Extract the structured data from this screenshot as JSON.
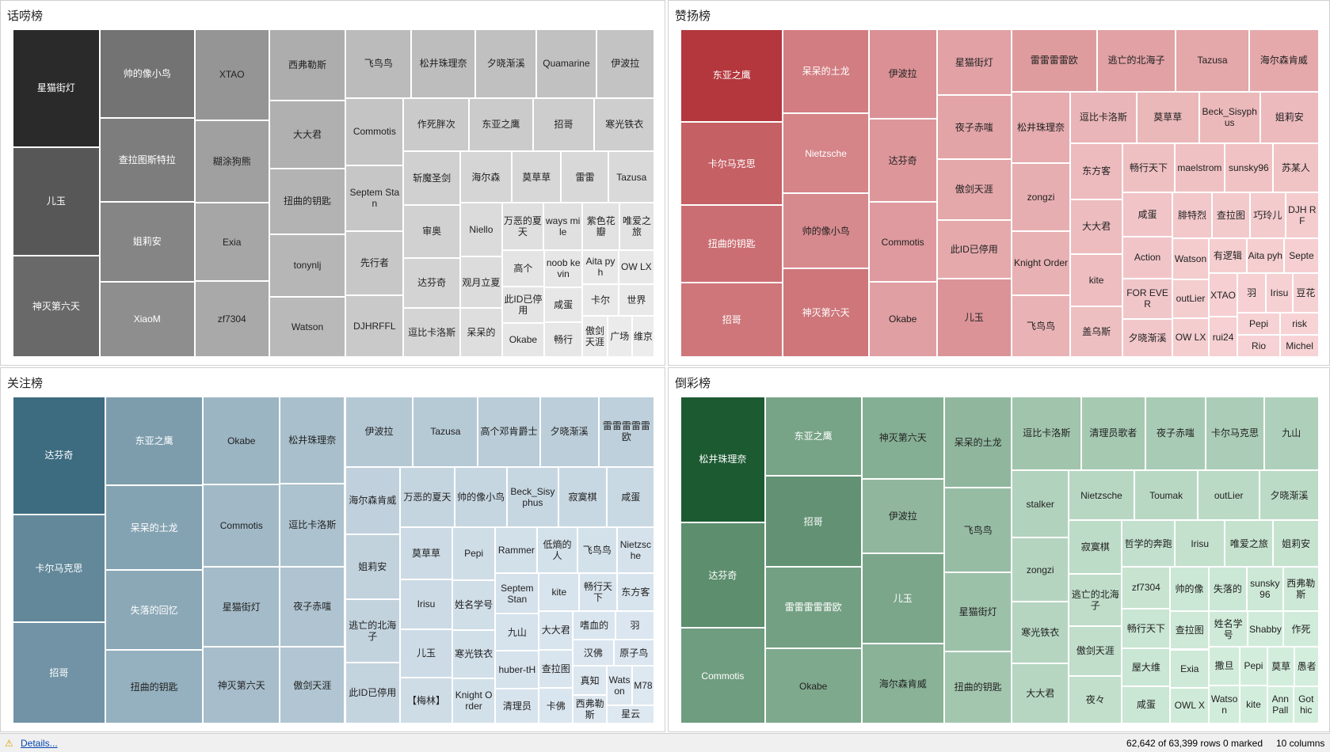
{
  "chart_data": [
    {
      "type": "treemap",
      "title": "话唠榜",
      "color": "#2a2a2a",
      "light_color": "#ececec",
      "categories": [
        "星猫街灯",
        "儿玉",
        "神灭第六天",
        "帅的像小鸟",
        "查拉图斯特拉",
        "姐莉安",
        "XiaoM",
        "XTAO",
        "糊涂狗熊",
        "Exia",
        "zf7304",
        "西弗勒斯",
        "大大君",
        "扭曲的钥匙",
        "tonynlj",
        "Watson",
        "飞鸟鸟",
        "松井珠理奈",
        "夕晓渐溪",
        "Quamarine",
        "伊波拉",
        "Commotis",
        "Septem Stan",
        "先行者",
        "DJHRFFL",
        "作死胖次",
        "东亚之鹰",
        "招哥",
        "寒光铁衣",
        "斩魔圣剑",
        "审奥",
        "达芬奇",
        "逗比卡洛斯",
        "海尔森",
        "莫草草",
        "雷雷",
        "Tazusa",
        "Niello",
        "观月立夏",
        "呆呆的",
        "万恶的夏天",
        "ways mile",
        "紫色花瓣",
        "唯爱之旅",
        "高个",
        "此ID已停用",
        "Okabe",
        "noob kevin",
        "咸蛋",
        "畅行",
        "Aita pyh",
        "OW LX",
        "卡尔",
        "世界",
        "傲剑天涯",
        "广场",
        "维京"
      ],
      "values": [
        100,
        92,
        86,
        82,
        78,
        74,
        70,
        66,
        60,
        57,
        55,
        53,
        51,
        49,
        47,
        45,
        44,
        43,
        41,
        40,
        39,
        38,
        37,
        36,
        35,
        34,
        33,
        32,
        31,
        30,
        29,
        28,
        27,
        26,
        25,
        24,
        23,
        22,
        21,
        20,
        19,
        18,
        17,
        16,
        15,
        15,
        14,
        14,
        13,
        13,
        12,
        12,
        11,
        11,
        10,
        10,
        9
      ]
    },
    {
      "type": "treemap",
      "title": "赞扬榜",
      "color": "#b3373d",
      "light_color": "#f7d3d5",
      "categories": [
        "东亚之鹰",
        "卡尔马克思",
        "扭曲的钥匙",
        "招哥",
        "呆呆的土龙",
        "Nietzsche",
        "帅的像小鸟",
        "神灭第六天",
        "伊波拉",
        "达芬奇",
        "Commotis",
        "Okabe",
        "星猫街灯",
        "夜子赤嗤",
        "傲剑天涯",
        "此ID已停用",
        "儿玉",
        "雷雷雷雷欧",
        "逃亡的北海子",
        "Tazusa",
        "海尔森肯威",
        "松井珠理奈",
        "zongzi",
        "Knight Order",
        "飞鸟鸟",
        "逗比卡洛斯",
        "莫草草",
        "Beck_Sisyphus",
        "姐莉安",
        "东方客",
        "大大君",
        "kite",
        "盖乌斯",
        "畅行天下",
        "maelstrom",
        "sunsky96",
        "苏某人",
        "咸蛋",
        "Action",
        "FOR EVER",
        "夕晓渐溪",
        "腓特烈",
        "查拉图",
        "巧玲儿",
        "DJH RF",
        "Watson",
        "outLier",
        "OW LX",
        "有逻辑",
        "Aita pyh",
        "Septe",
        "XTAO",
        "rui24",
        "羽",
        "Irisu",
        "豆花",
        "Pepi",
        "Rio",
        "risk",
        "Michel"
      ],
      "values": [
        100,
        90,
        84,
        80,
        76,
        72,
        68,
        80,
        64,
        60,
        57,
        54,
        52,
        50,
        48,
        46,
        62,
        56,
        52,
        48,
        46,
        44,
        42,
        40,
        38,
        36,
        34,
        33,
        32,
        31,
        30,
        29,
        28,
        27,
        26,
        25,
        24,
        23,
        22,
        21,
        20,
        19,
        18,
        17,
        16,
        16,
        15,
        15,
        14,
        14,
        13,
        13,
        12,
        12,
        11,
        11,
        10,
        10,
        9,
        9
      ]
    },
    {
      "type": "treemap",
      "title": "关注榜",
      "color": "#3d6b80",
      "light_color": "#dde8f1",
      "categories": [
        "达芬奇",
        "卡尔马克思",
        "招哥",
        "东亚之鹰",
        "呆呆的土龙",
        "失落的回忆",
        "扭曲的钥匙",
        "Okabe",
        "Commotis",
        "星猫街灯",
        "神灭第六天",
        "松井珠理奈",
        "逗比卡洛斯",
        "夜子赤嗤",
        "傲剑天涯",
        "伊波拉",
        "Tazusa",
        "高个邓肯爵士",
        "夕晓渐溪",
        "雷雷雷雷雷欧",
        "海尔森肯威",
        "姐莉安",
        "逃亡的北海子",
        "此ID已停用",
        "万恶的夏天",
        "帅的像小鸟",
        "Beck_Sisyphus",
        "寂寞棋",
        "咸蛋",
        "莫草草",
        "Irisu",
        "儿玉",
        "【梅林】",
        "Pepi",
        "姓名学号",
        "寒光铁衣",
        "Knight Order",
        "Rammer",
        "低熵的人",
        "飞鸟鸟",
        "Nietzsche",
        "Septem Stan",
        "九山",
        "huber-tH",
        "清理员",
        "kite",
        "畅行天下",
        "东方客",
        "大大君",
        "查拉图",
        "卡佛",
        "嗜血的",
        "羽",
        "汉佛",
        "原子鸟",
        "真知",
        "西弗勒斯",
        "Watson",
        "M78",
        "星云"
      ],
      "values": [
        100,
        92,
        86,
        80,
        76,
        72,
        66,
        62,
        58,
        56,
        54,
        52,
        50,
        48,
        46,
        44,
        42,
        40,
        38,
        36,
        34,
        33,
        32,
        31,
        30,
        29,
        28,
        27,
        26,
        25,
        24,
        23,
        22,
        21,
        20,
        19,
        18,
        18,
        17,
        17,
        16,
        16,
        15,
        15,
        14,
        14,
        13,
        13,
        12,
        12,
        11,
        11,
        10,
        10,
        10,
        9,
        9,
        9,
        8,
        8
      ]
    },
    {
      "type": "treemap",
      "title": "倒彩榜",
      "color": "#1c5a32",
      "light_color": "#d4eedd",
      "categories": [
        "松井珠理奈",
        "达芬奇",
        "Commotis",
        "东亚之鹰",
        "招哥",
        "雷雷雷雷雷欧",
        "Okabe",
        "神灭第六天",
        "伊波拉",
        "儿玉",
        "海尔森肯威",
        "呆呆的土龙",
        "飞鸟鸟",
        "星猫街灯",
        "扭曲的钥匙",
        "逗比卡洛斯",
        "清理员歌者",
        "夜子赤嗤",
        "卡尔马克思",
        "九山",
        "stalker",
        "zongzi",
        "寒光铁衣",
        "大大君",
        "Nietzsche",
        "Toumak",
        "outLier",
        "夕晓渐溪",
        "寂寞棋",
        "逃亡的北海子",
        "傲剑天涯",
        "夜々",
        "哲学的奔跑",
        "Irisu",
        "唯爱之旅",
        "姐莉安",
        "zf7304",
        "畅行天下",
        "屋大维",
        "咸蛋",
        "帅的像",
        "失落的",
        "sunsky96",
        "西弗勒斯",
        "查拉图",
        "Exia",
        "OWL X",
        "姓名学号",
        "Shabby",
        "作死",
        "撒旦",
        "Watson",
        "Pepi",
        "kite",
        "莫草",
        "愚者",
        "Ann Pall",
        "Got hic"
      ],
      "values": [
        100,
        84,
        76,
        72,
        82,
        74,
        68,
        64,
        58,
        70,
        62,
        58,
        54,
        50,
        46,
        48,
        44,
        42,
        40,
        38,
        36,
        34,
        33,
        32,
        31,
        30,
        29,
        28,
        27,
        26,
        25,
        24,
        23,
        22,
        21,
        20,
        19,
        18,
        17,
        17,
        16,
        16,
        15,
        15,
        14,
        14,
        13,
        13,
        12,
        12,
        11,
        11,
        10,
        10,
        10,
        9,
        9,
        9
      ]
    }
  ],
  "status_bar": {
    "link": "Details...",
    "rows": "62,642 of 63,399 rows",
    "marked": "0 marked",
    "columns": "10 columns"
  }
}
